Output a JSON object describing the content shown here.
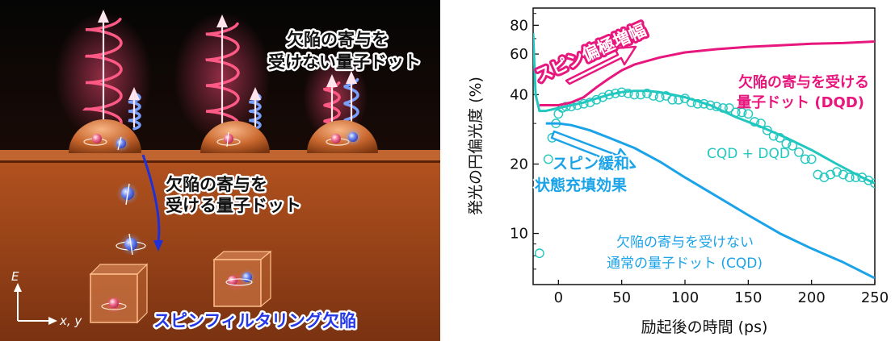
{
  "illustration": {
    "label_top_right": [
      "欠陥の寄与を",
      "受けない量子ドット"
    ],
    "label_middle": [
      "欠陥の寄与を",
      "受ける量子ドット"
    ],
    "label_bottom": "スピンフィルタリング欠陥",
    "axis_vertical": "E",
    "axis_horizontal": "x, y"
  },
  "chart_data": {
    "type": "line",
    "xlabel": "励起後の時間 (ps)",
    "ylabel": "発光の円偏光度 (%)",
    "xlim": [
      -20,
      250
    ],
    "ylim": [
      6,
      95
    ],
    "yscale": "log",
    "xticks": [
      0,
      50,
      100,
      150,
      200,
      250
    ],
    "yticks": [
      10,
      20,
      40,
      60,
      80
    ],
    "annotations": {
      "pink_arrow": "スピン偏極増幅",
      "blue_arrow": [
        "スピン緩和",
        "状態充填効果"
      ]
    },
    "series": [
      {
        "name": "欠陥の寄与を受ける量子ドット (DQD)",
        "label_lines": [
          "欠陥の寄与を受ける",
          "量子ドット (DQD)"
        ],
        "color": "#e8177e",
        "style": "line",
        "x": [
          -15,
          0,
          10,
          20,
          30,
          40,
          50,
          60,
          80,
          100,
          125,
          150,
          175,
          200,
          225,
          250
        ],
        "y": [
          36,
          36,
          37,
          39,
          43,
          47,
          51,
          54,
          58,
          61,
          63,
          64.5,
          65.5,
          66.5,
          67,
          68
        ]
      },
      {
        "name": "CQD + DQD",
        "color": "#22c7bf",
        "style": "line",
        "x": [
          -20,
          -18,
          -15,
          -10,
          0,
          10,
          20,
          30,
          40,
          50,
          60,
          70,
          80,
          90,
          100,
          120,
          140,
          160,
          180,
          200,
          220,
          240,
          250
        ],
        "y": [
          74,
          40,
          34,
          34,
          35,
          36,
          37,
          38.5,
          40,
          41,
          41.5,
          41.5,
          41,
          40,
          39,
          36,
          32,
          29,
          26,
          23,
          20,
          17.5,
          16.5
        ]
      },
      {
        "name": "CQD + DQD (data)",
        "color": "#22c7bf",
        "style": "markers",
        "x": [
          -15,
          -12,
          -8,
          -5,
          -2,
          0,
          3,
          6,
          10,
          15,
          20,
          25,
          30,
          35,
          40,
          45,
          50,
          55,
          60,
          65,
          70,
          75,
          80,
          85,
          90,
          95,
          100,
          105,
          110,
          115,
          120,
          125,
          130,
          135,
          140,
          145,
          150,
          155,
          160,
          165,
          170,
          175,
          180,
          185,
          190,
          195,
          200,
          205,
          210,
          215,
          220,
          225,
          230,
          235,
          240,
          245,
          250
        ],
        "y": [
          8.2,
          16,
          21,
          26,
          30,
          33,
          35,
          35.5,
          35.5,
          36,
          36.5,
          37,
          38,
          39,
          40,
          40.5,
          41,
          40.5,
          40,
          40,
          40.5,
          39.5,
          39,
          39.5,
          38,
          38,
          38.5,
          37,
          36.5,
          36.5,
          36,
          35.5,
          35,
          35,
          33.5,
          33.5,
          33,
          30.5,
          30,
          28,
          26.5,
          26,
          24.5,
          24,
          22.5,
          21,
          21,
          18,
          17.5,
          18,
          18.5,
          18,
          17.5,
          17.5,
          17.5,
          17,
          16.5
        ]
      },
      {
        "name": "欠陥の寄与を受けない通常の量子ドット (CQD)",
        "label_lines": [
          "欠陥の寄与を受けない",
          "通常の量子ドット (CQD)"
        ],
        "color": "#1aa3e8",
        "style": "line",
        "x": [
          -10,
          0,
          10,
          25,
          40,
          60,
          80,
          100,
          125,
          150,
          175,
          200,
          225,
          250
        ],
        "y": [
          30,
          30,
          29.5,
          28,
          26,
          23.5,
          20.5,
          17.5,
          14.5,
          12,
          10,
          8.6,
          7.5,
          6.4
        ]
      }
    ]
  }
}
